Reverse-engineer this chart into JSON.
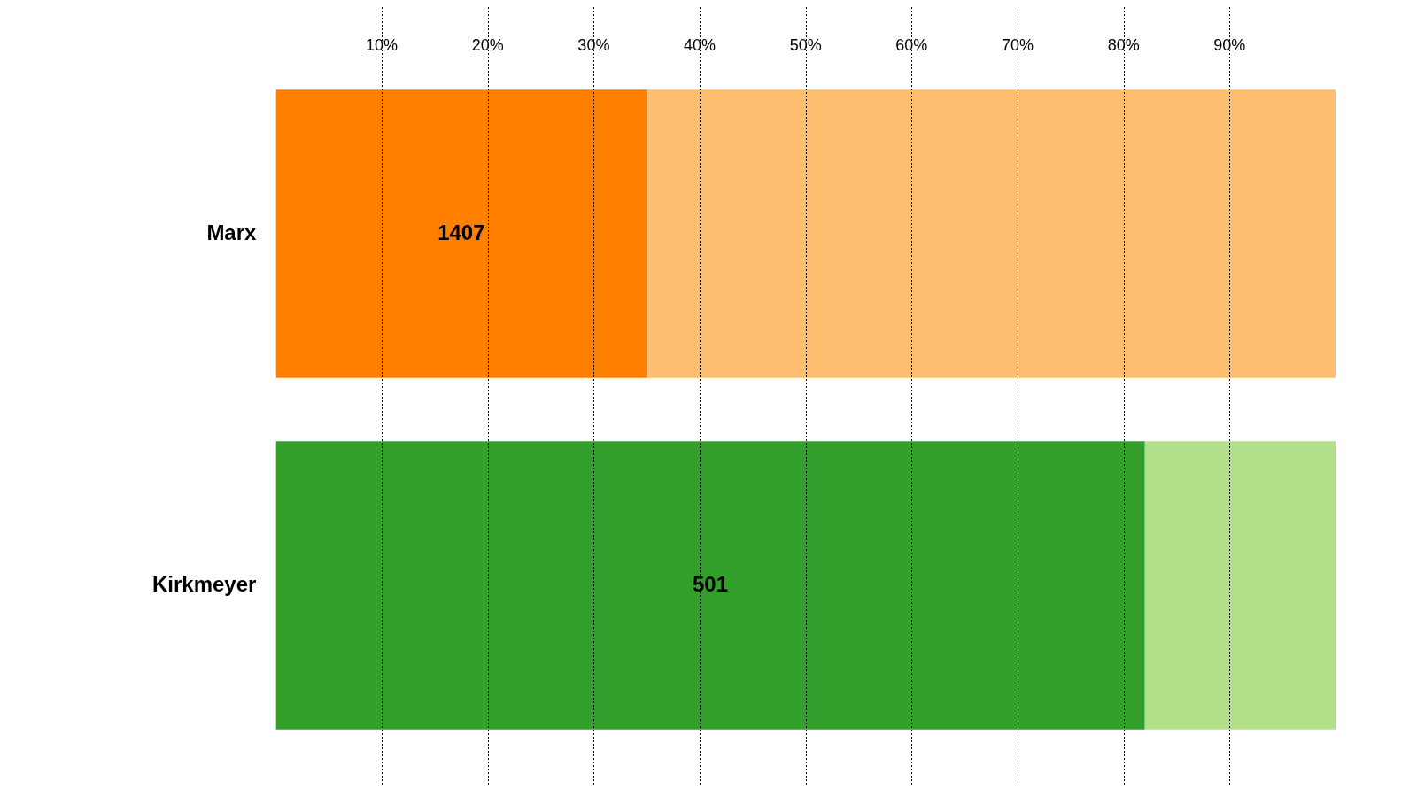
{
  "chart_data": {
    "type": "bar",
    "orientation": "horizontal",
    "stacked": true,
    "categories": [
      "Marx",
      "Kirkmeyer"
    ],
    "series": [
      {
        "colors": [
          "#ff7f00",
          "#33a02c"
        ],
        "values": [
          35,
          82
        ]
      },
      {
        "colors": [
          "#fdbf6f",
          "#b2df8a"
        ],
        "values": [
          65,
          18
        ]
      }
    ],
    "xlim": [
      0,
      100
    ],
    "xticks": [
      {
        "value": 10,
        "label": "10%"
      },
      {
        "value": 20,
        "label": "20%"
      },
      {
        "value": 30,
        "label": "30%"
      },
      {
        "value": 40,
        "label": "40%"
      },
      {
        "value": 50,
        "label": "50%"
      },
      {
        "value": 60,
        "label": "60%"
      },
      {
        "value": 70,
        "label": "70%"
      },
      {
        "value": 80,
        "label": "80%"
      },
      {
        "value": 90,
        "label": "90%"
      }
    ],
    "annotations": [
      "1407",
      "501"
    ],
    "grid": "x",
    "legend": false
  }
}
